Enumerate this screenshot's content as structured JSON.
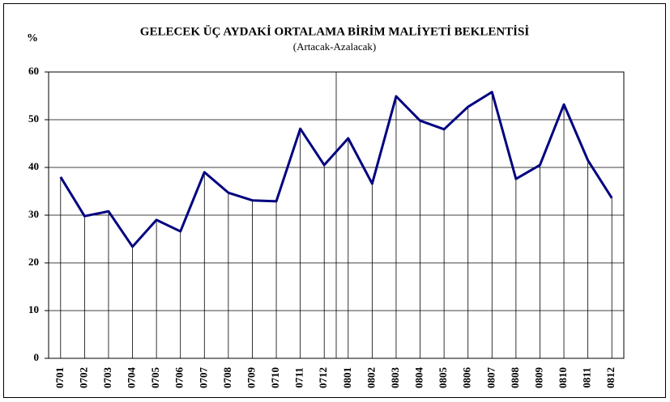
{
  "chart_data": {
    "type": "line",
    "title": "GELECEK ÜÇ AYDAKİ ORTALAMA BİRİM MALİYETİ BEKLENTİSİ",
    "subtitle": "(Artacak-Azalacak)",
    "y_label": "%",
    "categories": [
      "0701",
      "0702",
      "0703",
      "0704",
      "0705",
      "0706",
      "0707",
      "0708",
      "0709",
      "0710",
      "0711",
      "0712",
      "0801",
      "0802",
      "0803",
      "0804",
      "0805",
      "0806",
      "0807",
      "0808",
      "0809",
      "0810",
      "0811",
      "0812"
    ],
    "series": [
      {
        "color": "#000080",
        "values": [
          38.0,
          29.8,
          30.8,
          23.4,
          29.0,
          26.6,
          39.0,
          34.7,
          33.1,
          32.9,
          48.1,
          40.5,
          46.1,
          36.6,
          54.9,
          49.8,
          48.0,
          52.7,
          55.8,
          37.6,
          40.5,
          53.2,
          41.5,
          33.6
        ]
      }
    ],
    "ylim": [
      0,
      60
    ],
    "yticks": [
      0,
      10,
      20,
      30,
      40,
      50,
      60
    ],
    "grid": true
  }
}
